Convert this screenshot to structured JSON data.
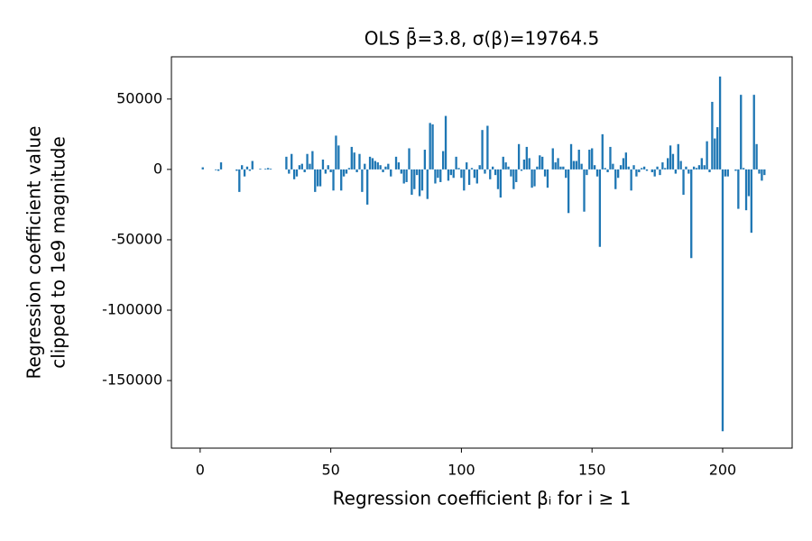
{
  "chart_data": {
    "type": "bar",
    "title": "OLS β̄=3.8, σ(β)=19764.5",
    "xlabel": "Regression coefficient βᵢ for i ≥ 1",
    "ylabel": [
      "Regression coefficient value",
      "clipped to 1e9 magnitude"
    ],
    "color": "#1f77b4",
    "x": [
      1,
      2,
      3,
      4,
      5,
      6,
      7,
      8,
      9,
      10,
      11,
      12,
      13,
      14,
      15,
      16,
      17,
      18,
      19,
      20,
      21,
      22,
      23,
      24,
      25,
      26,
      27,
      28,
      29,
      30,
      31,
      32,
      33,
      34,
      35,
      36,
      37,
      38,
      39,
      40,
      41,
      42,
      43,
      44,
      45,
      46,
      47,
      48,
      49,
      50,
      51,
      52,
      53,
      54,
      55,
      56,
      57,
      58,
      59,
      60,
      61,
      62,
      63,
      64,
      65,
      66,
      67,
      68,
      69,
      70,
      71,
      72,
      73,
      74,
      75,
      76,
      77,
      78,
      79,
      80,
      81,
      82,
      83,
      84,
      85,
      86,
      87,
      88,
      89,
      90,
      91,
      92,
      93,
      94,
      95,
      96,
      97,
      98,
      99,
      100,
      101,
      102,
      103,
      104,
      105,
      106,
      107,
      108,
      109,
      110,
      111,
      112,
      113,
      114,
      115,
      116,
      117,
      118,
      119,
      120,
      121,
      122,
      123,
      124,
      125,
      126,
      127,
      128,
      129,
      130,
      131,
      132,
      133,
      134,
      135,
      136,
      137,
      138,
      139,
      140,
      141,
      142,
      143,
      144,
      145,
      146,
      147,
      148,
      149,
      150,
      151,
      152,
      153,
      154,
      155,
      156,
      157,
      158,
      159,
      160,
      161,
      162,
      163,
      164,
      165,
      166,
      167,
      168,
      169,
      170,
      171,
      172,
      173,
      174,
      175,
      176,
      177,
      178,
      179,
      180,
      181,
      182,
      183,
      184,
      185,
      186,
      187,
      188,
      189,
      190,
      191,
      192,
      193,
      194,
      195,
      196,
      197,
      198,
      199,
      200,
      201,
      202,
      203,
      204,
      205,
      206,
      207,
      208,
      209,
      210,
      211,
      212,
      213,
      214,
      215,
      216
    ],
    "values": [
      1500,
      0,
      0,
      0,
      0,
      -500,
      -1000,
      5000,
      0,
      0,
      0,
      0,
      0,
      -1000,
      -16000,
      3000,
      -5000,
      2000,
      -1000,
      6000,
      0,
      0,
      500,
      0,
      500,
      1000,
      500,
      0,
      0,
      0,
      0,
      0,
      9000,
      -3000,
      11000,
      -7000,
      -5000,
      3000,
      4000,
      -2000,
      11000,
      4000,
      13000,
      -16000,
      -12000,
      -12000,
      7000,
      -3000,
      3000,
      -2000,
      -15000,
      24000,
      17000,
      -15000,
      -5000,
      -3000,
      1000,
      16000,
      12000,
      -2000,
      11000,
      -16000,
      4000,
      -25000,
      9000,
      8000,
      6000,
      5000,
      3000,
      -2000,
      2000,
      4000,
      -5000,
      0,
      9000,
      5000,
      -3000,
      -10000,
      -9000,
      15000,
      -18000,
      -14000,
      -4000,
      -19000,
      -15000,
      14000,
      -21000,
      33000,
      32000,
      -10000,
      -6000,
      -9000,
      13000,
      38000,
      -8000,
      -4000,
      -6000,
      9000,
      1000,
      -6000,
      -15000,
      5000,
      -11000,
      1000,
      -6000,
      -10000,
      3000,
      28000,
      -3000,
      31000,
      -7000,
      2000,
      -4000,
      -14000,
      -20000,
      9000,
      5000,
      2000,
      -5000,
      -14000,
      -9000,
      18000,
      -1000,
      7000,
      16000,
      8000,
      -13000,
      -12000,
      2000,
      10000,
      9000,
      -5000,
      -13000,
      0,
      15000,
      5000,
      8000,
      2000,
      2000,
      -6000,
      -31000,
      18000,
      6000,
      6000,
      14000,
      4000,
      -30000,
      -4000,
      14000,
      15000,
      3000,
      -5000,
      -55000,
      25000,
      1000,
      -2000,
      16000,
      4000,
      -14000,
      -6000,
      3000,
      8000,
      12000,
      2000,
      -15000,
      3000,
      -5000,
      -2000,
      1000,
      2000,
      -1000,
      0,
      -2000,
      -5000,
      2000,
      -4000,
      5000,
      1000,
      8000,
      17000,
      11000,
      -3000,
      18000,
      6000,
      -18000,
      2000,
      -3000,
      -63000,
      2000,
      1000,
      3000,
      8000,
      3000,
      20000,
      -2000,
      48000,
      22000,
      30000,
      66000,
      -186000,
      -5000,
      -5000,
      0,
      0,
      -1000,
      -28000,
      53000,
      1000,
      -29000,
      -19000,
      -45000,
      53000,
      18000,
      -3000,
      -8000,
      -4000
    ],
    "xlim": [
      -11,
      226.6
    ],
    "ylim": [
      -198000,
      80000
    ],
    "xticks": [
      0,
      50,
      100,
      150,
      200
    ],
    "yticks": [
      -150000,
      -100000,
      -50000,
      0,
      50000
    ]
  }
}
